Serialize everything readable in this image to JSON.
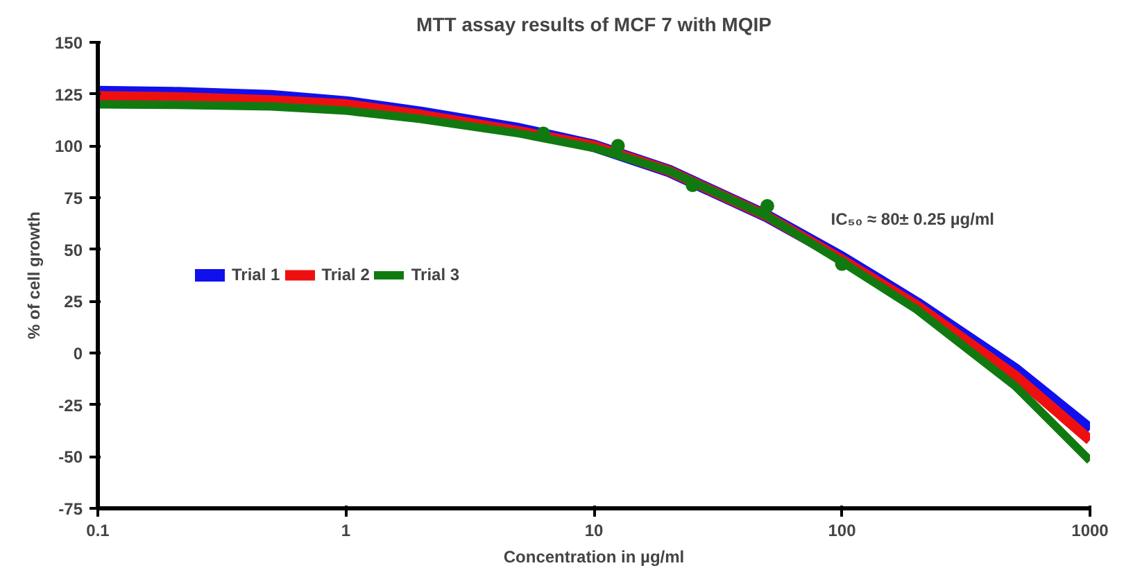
{
  "chart_data": {
    "type": "line",
    "title": "MTT assay results of MCF 7 with MQIP",
    "xlabel": "Concentration in µg/ml",
    "ylabel": "% of cell growth",
    "log": "x",
    "xlim": [
      0.1,
      1000
    ],
    "xticks": [
      0.1,
      1,
      10,
      100,
      1000
    ],
    "ylim": [
      -75,
      150
    ],
    "yticks": [
      -75,
      -50,
      -25,
      0,
      25,
      50,
      75,
      100,
      125,
      150
    ],
    "grid": false,
    "legend": "left",
    "line_style": "solid",
    "x": [
      0.1,
      0.2,
      0.5,
      1,
      2,
      5,
      10,
      20,
      50,
      100,
      200,
      500,
      1000
    ],
    "series": [
      {
        "name": "Trial 1",
        "color": "#1010ee",
        "values": [
          126,
          125.5,
          124,
          121,
          116,
          108,
          100,
          88,
          66,
          46,
          24,
          -8,
          -37
        ]
      },
      {
        "name": "Trial 2",
        "color": "#ee1010",
        "values": [
          124,
          123.5,
          122,
          120,
          115,
          107,
          100,
          88,
          66,
          45,
          23,
          -11,
          -42
        ]
      },
      {
        "name": "Trial 3",
        "color": "#107a10",
        "values": [
          120,
          119.8,
          119,
          117,
          113,
          106,
          99,
          88,
          66,
          44,
          21,
          -16,
          -52
        ]
      },
      {
        "type": "scatter",
        "marker": "circle",
        "color": "#107a10",
        "x": [
          6.25,
          12.5,
          25,
          50,
          100
        ],
        "values": [
          106,
          100,
          81,
          71,
          43
        ]
      }
    ],
    "annotations": [
      "IC₅₀ ≈ 80± 0.25 µg/ml"
    ]
  }
}
